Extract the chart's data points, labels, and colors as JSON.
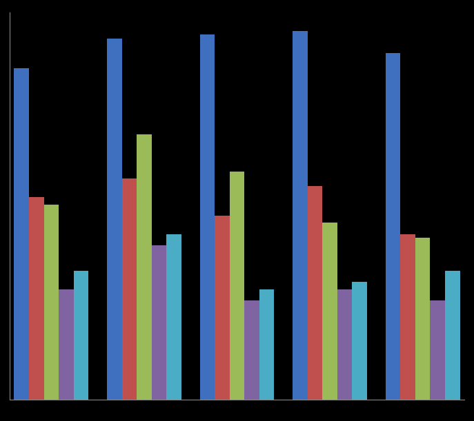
{
  "groups": 5,
  "series": 5,
  "colors": [
    "#3F6FBF",
    "#C0504D",
    "#9BBB59",
    "#8064A2",
    "#4BACC6"
  ],
  "background_color": "#000000",
  "plot_bg_color": "#000000",
  "values": [
    [
      90,
      55,
      53,
      30,
      35
    ],
    [
      98,
      60,
      72,
      42,
      45
    ],
    [
      99,
      50,
      62,
      27,
      30
    ],
    [
      100,
      58,
      48,
      30,
      32
    ],
    [
      94,
      45,
      44,
      27,
      35
    ]
  ],
  "bar_width": 0.16,
  "ylim": [
    0,
    105
  ],
  "spine_color": "#888888",
  "figsize": [
    6.87,
    6.11
  ],
  "dpi": 100
}
